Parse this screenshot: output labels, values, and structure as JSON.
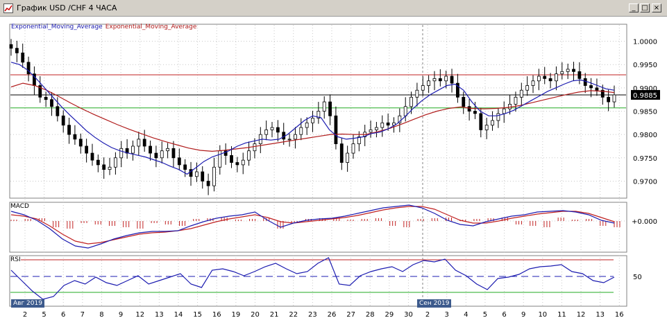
{
  "window": {
    "title": "График USD /CHF  4 ЧАСА",
    "minimize_label": "_",
    "maximize_label": "□",
    "close_label": "×"
  },
  "legend": {
    "series1": "Exponential_Moving_Average",
    "series2": "Exponential_Moving_Average",
    "series1_color": "#1b1bb0",
    "series2_color": "#b01b1b"
  },
  "price_axis": {
    "labels": [
      "1.0000",
      "0.9950",
      "0.9900",
      "0.9850",
      "0.9800",
      "0.9750",
      "0.9700"
    ],
    "current_price": "0.9885"
  },
  "macd": {
    "label": "MACD",
    "axis_label": "+0.000"
  },
  "rsi": {
    "label": "RSI",
    "axis_label": "50"
  },
  "date_flags": {
    "aug": "Авг 2019",
    "sep": "Сен 2019"
  },
  "x_axis": {
    "labels": [
      "2",
      "5",
      "6",
      "7",
      "8",
      "9",
      "12",
      "13",
      "14",
      "15",
      "16",
      "19",
      "20",
      "21",
      "22",
      "23",
      "26",
      "27",
      "28",
      "29",
      "30",
      "2",
      "3",
      "4",
      "5",
      "6",
      "9",
      "10",
      "11",
      "12",
      "13",
      "16"
    ]
  },
  "chart_data": {
    "type": "candlestick",
    "title": "USD /CHF 4 ЧАСА",
    "ylim": [
      0.9665,
      1.0035
    ],
    "horizontal_lines": {
      "resistance": 0.9928,
      "current": 0.9885,
      "support": 0.9857
    },
    "ohlc_close_path": [
      0.9985,
      0.9975,
      0.9955,
      0.993,
      0.9905,
      0.988,
      0.9875,
      0.986,
      0.984,
      0.982,
      0.98,
      0.979,
      0.9775,
      0.976,
      0.9745,
      0.9735,
      0.9725,
      0.973,
      0.975,
      0.977,
      0.976,
      0.9775,
      0.979,
      0.9775,
      0.976,
      0.975,
      0.9765,
      0.977,
      0.975,
      0.9735,
      0.9725,
      0.971,
      0.972,
      0.97,
      0.969,
      0.973,
      0.9765,
      0.9755,
      0.974,
      0.9735,
      0.9745,
      0.9765,
      0.978,
      0.98,
      0.981,
      0.9815,
      0.9805,
      0.979,
      0.979,
      0.98,
      0.9815,
      0.9825,
      0.9835,
      0.985,
      0.987,
      0.984,
      0.978,
      0.974,
      0.976,
      0.978,
      0.9795,
      0.9805,
      0.981,
      0.9815,
      0.9825,
      0.982,
      0.9825,
      0.984,
      0.986,
      0.988,
      0.9895,
      0.9905,
      0.9915,
      0.992,
      0.9915,
      0.9925,
      0.991,
      0.988,
      0.986,
      0.985,
      0.9845,
      0.981,
      0.982,
      0.983,
      0.9845,
      0.9855,
      0.9865,
      0.988,
      0.9895,
      0.9905,
      0.9915,
      0.9925,
      0.992,
      0.9915,
      0.993,
      0.9935,
      0.994,
      0.9935,
      0.992,
      0.9905,
      0.99,
      0.9895,
      0.988,
      0.987,
      0.9885
    ],
    "ema_fast": [
      0.9955,
      0.995,
      0.9938,
      0.992,
      0.99,
      0.988,
      0.986,
      0.9842,
      0.9825,
      0.9808,
      0.9794,
      0.9782,
      0.9772,
      0.9765,
      0.976,
      0.9756,
      0.9752,
      0.9746,
      0.974,
      0.9732,
      0.9725,
      0.9715,
      0.9728,
      0.9742,
      0.9752,
      0.9758,
      0.9765,
      0.9775,
      0.9782,
      0.9786,
      0.979,
      0.9788,
      0.979,
      0.98,
      0.9815,
      0.983,
      0.984,
      0.9836,
      0.981,
      0.9795,
      0.979,
      0.9792,
      0.9795,
      0.9802,
      0.9805,
      0.9812,
      0.9822,
      0.9838,
      0.9856,
      0.9872,
      0.9885,
      0.9895,
      0.9905,
      0.9908,
      0.9895,
      0.987,
      0.985,
      0.984,
      0.984,
      0.9845,
      0.9852,
      0.9862,
      0.9872,
      0.9882,
      0.9892,
      0.99,
      0.9908,
      0.9915,
      0.9917,
      0.9912,
      0.9905,
      0.9898,
      0.9895
    ],
    "ema_slow": [
      0.9902,
      0.991,
      0.9905,
      0.9895,
      0.9882,
      0.9868,
      0.9855,
      0.9843,
      0.9832,
      0.9821,
      0.9811,
      0.9802,
      0.9793,
      0.9785,
      0.9778,
      0.9771,
      0.9766,
      0.9764,
      0.9766,
      0.9769,
      0.9772,
      0.9776,
      0.978,
      0.9784,
      0.9788,
      0.9792,
      0.9796,
      0.98,
      0.9801,
      0.98,
      0.98,
      0.9806,
      0.9813,
      0.9822,
      0.9832,
      0.9842,
      0.985,
      0.9856,
      0.9859,
      0.9856,
      0.9855,
      0.9856,
      0.9858,
      0.9862,
      0.9868,
      0.9874,
      0.988,
      0.9886,
      0.9891,
      0.9894,
      0.9893,
      0.989
    ],
    "macd_hist_sign": [
      1,
      1,
      1,
      -1,
      -1,
      -1,
      -1,
      -1,
      -1,
      -1,
      -1,
      -1,
      -1,
      1,
      1,
      1,
      1,
      1,
      1,
      -1,
      -1,
      1,
      1,
      1,
      1,
      1,
      1,
      -1,
      -1,
      1,
      1,
      1,
      1,
      1,
      1,
      1,
      -1,
      -1,
      -1,
      1,
      1,
      1,
      -1,
      -1
    ],
    "rsi_levels": {
      "upper": 70,
      "mid": 50,
      "lower": 30
    }
  }
}
